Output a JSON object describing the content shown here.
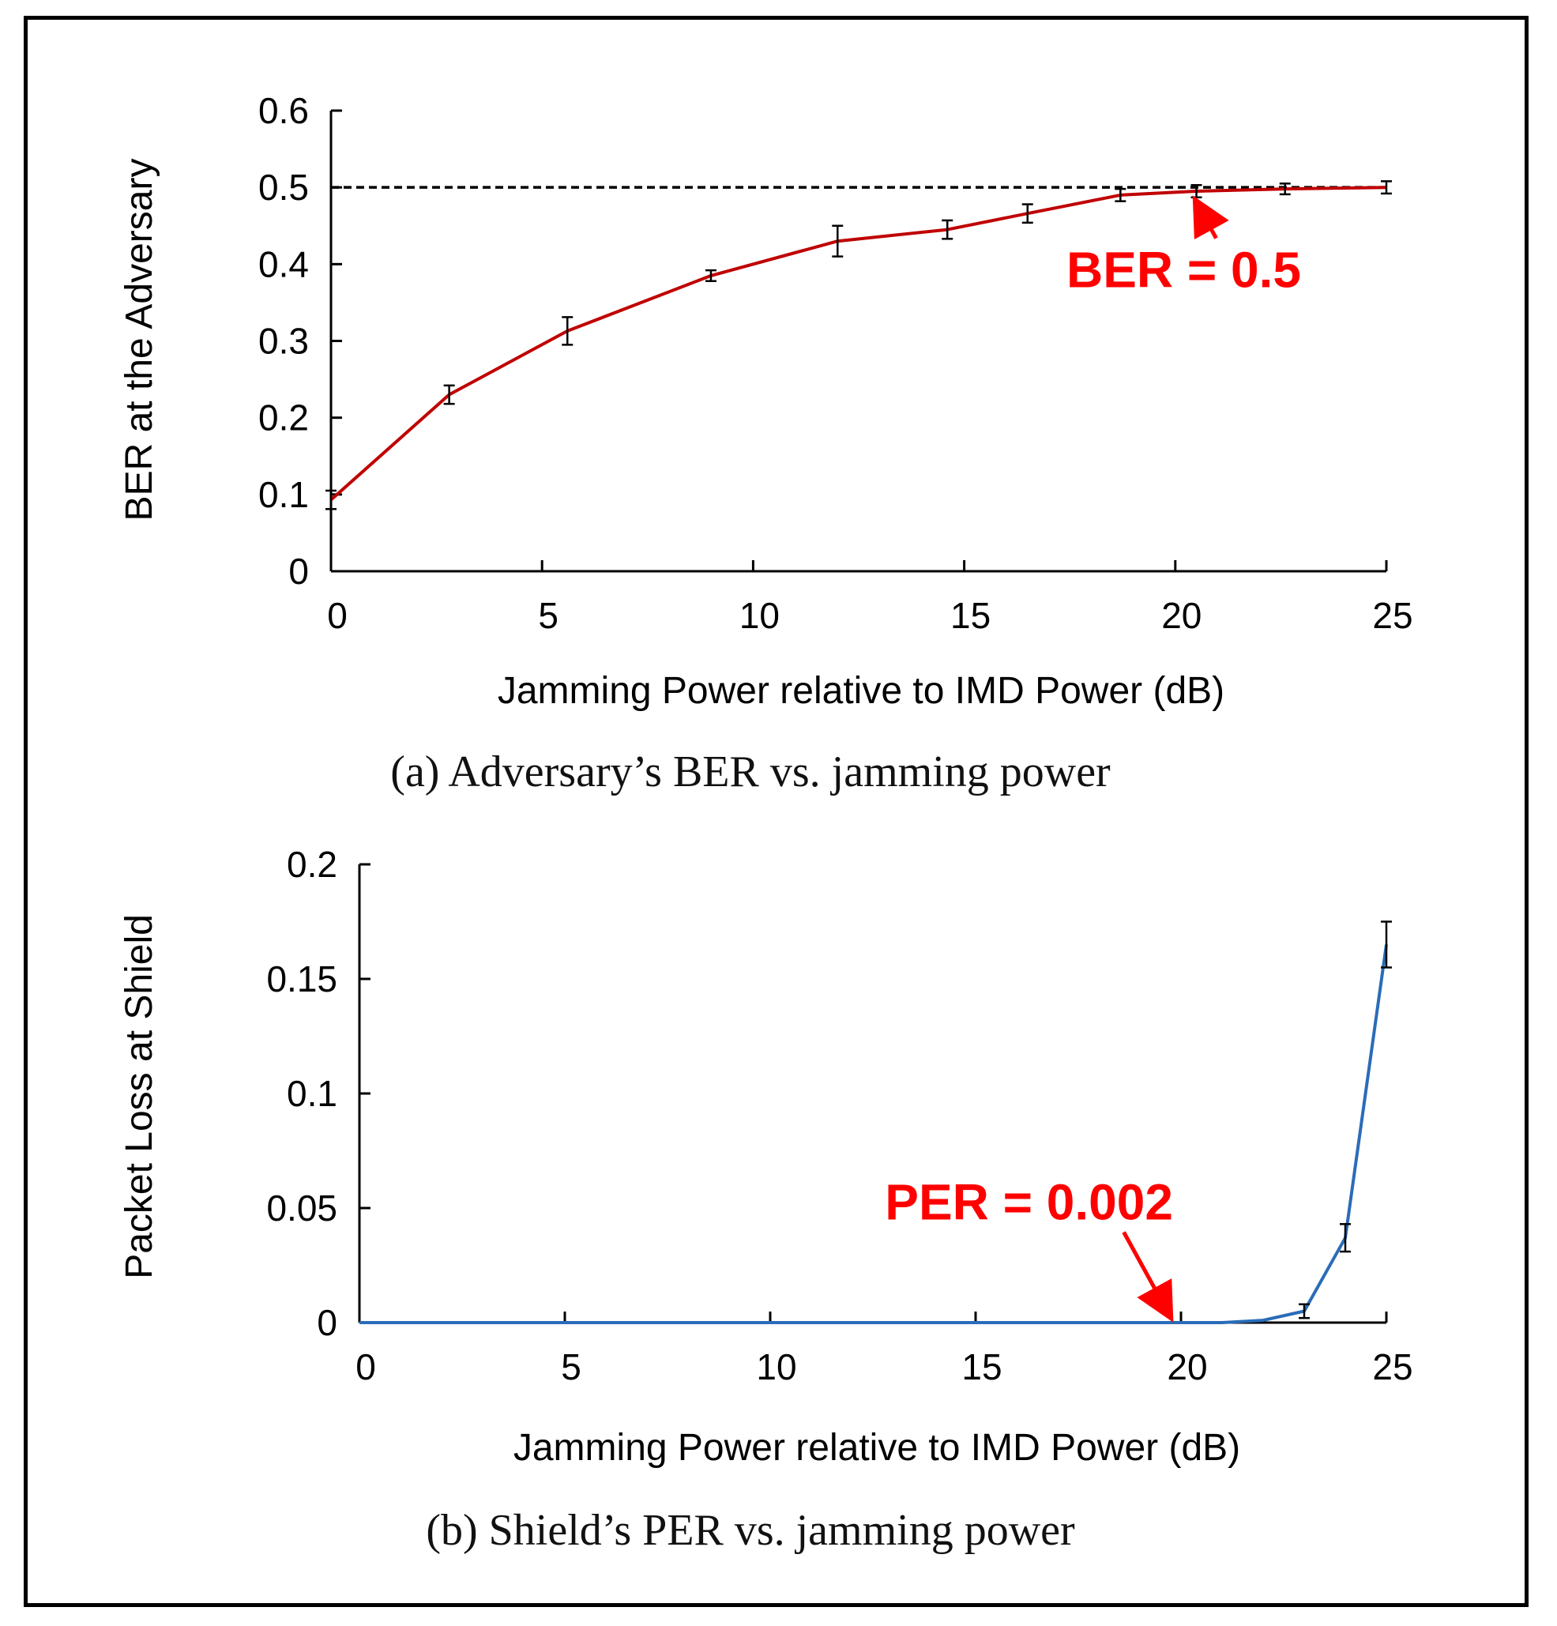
{
  "colors": {
    "red": "#c00000",
    "blue": "#2a6cb8",
    "annot": "#ff0000"
  },
  "chart_data": [
    {
      "type": "line",
      "caption": "(a) Adversary’s BER vs. jamming power",
      "xlabel": "Jamming Power relative to IMD Power (dB)",
      "ylabel": "BER at the Adversary",
      "xlim": [
        0,
        25
      ],
      "ylim": [
        0,
        0.6
      ],
      "xticks": [
        0,
        5,
        10,
        15,
        20,
        25
      ],
      "xtick_labels": [
        "0",
        "5",
        "10",
        "15",
        "20",
        "25"
      ],
      "yticks": [
        0,
        0.1,
        0.2,
        0.3,
        0.4,
        0.5,
        0.6
      ],
      "ytick_labels": [
        "0",
        "0.1",
        "0.2",
        "0.3",
        "0.4",
        "0.5",
        "0.6"
      ],
      "reference_line": {
        "y": 0.5,
        "style": "dashed"
      },
      "series": [
        {
          "name": "BER",
          "x": [
            0,
            2.8,
            5.6,
            9,
            12,
            14.6,
            16.5,
            18.7,
            20.5,
            22.6,
            25
          ],
          "values": [
            0.093,
            0.23,
            0.313,
            0.385,
            0.43,
            0.445,
            0.466,
            0.49,
            0.495,
            0.498,
            0.5
          ],
          "errors": [
            0.012,
            0.012,
            0.018,
            0.007,
            0.02,
            0.012,
            0.012,
            0.008,
            0.008,
            0.007,
            0.008
          ]
        }
      ],
      "annotation": {
        "text": "BER = 0.5",
        "x": 20.5,
        "y": 0.495,
        "text_x": 20.2,
        "text_y": 0.37
      }
    },
    {
      "type": "line",
      "caption": "(b) Shield’s PER vs. jamming power",
      "xlabel": "Jamming Power relative to IMD Power (dB)",
      "ylabel": "Packet Loss at Shield",
      "xlim": [
        0,
        25
      ],
      "ylim": [
        0,
        0.2
      ],
      "xticks": [
        0,
        5,
        10,
        15,
        20,
        25
      ],
      "xtick_labels": [
        "0",
        "5",
        "10",
        "15",
        "20",
        "25"
      ],
      "yticks": [
        0,
        0.05,
        0.1,
        0.15,
        0.2
      ],
      "ytick_labels": [
        "0",
        "0.05",
        "0.1",
        "0.15",
        "0.2"
      ],
      "series": [
        {
          "name": "PER",
          "x": [
            0,
            21,
            22,
            23,
            24,
            25
          ],
          "values": [
            0,
            0,
            0.001,
            0.005,
            0.037,
            0.165
          ],
          "errors": [
            null,
            null,
            null,
            0.003,
            0.006,
            0.01
          ]
        }
      ],
      "annotation": {
        "text": "PER = 0.002",
        "x": 19.8,
        "y": 0.001,
        "text_x": 16.3,
        "text_y": 0.045
      }
    }
  ]
}
